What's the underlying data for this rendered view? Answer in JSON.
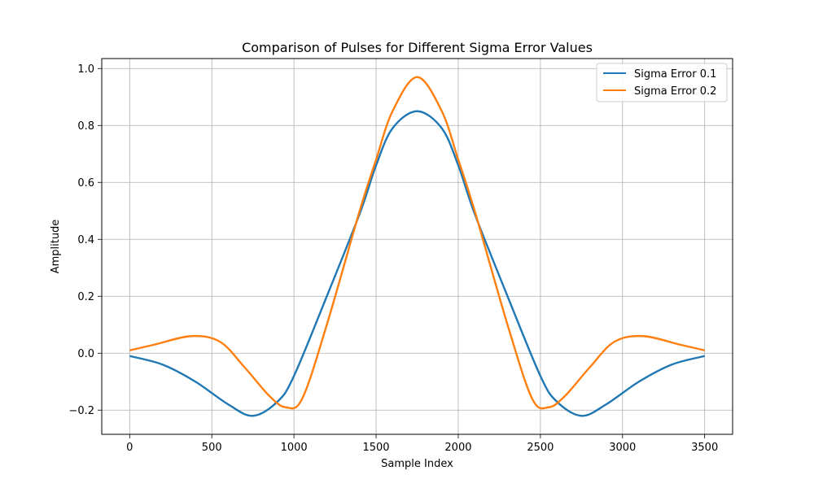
{
  "chart_data": {
    "type": "line",
    "title": "Comparison of Pulses for Different Sigma Error Values",
    "xlabel": "Sample Index",
    "ylabel": "Amplitude",
    "xlim": [
      -170,
      3670
    ],
    "ylim": [
      -0.285,
      1.035
    ],
    "xticks": [
      0,
      500,
      1000,
      1500,
      2000,
      2500,
      3000,
      3500
    ],
    "yticks": [
      -0.2,
      0.0,
      0.2,
      0.4,
      0.6,
      0.8,
      1.0
    ],
    "ytick_labels": [
      "−0.2",
      "0.0",
      "0.2",
      "0.4",
      "0.6",
      "0.8",
      "1.0"
    ],
    "grid": true,
    "legend": "top-right",
    "series": [
      {
        "name": "Sigma Error 0.1",
        "color": "#1f77b4",
        "x": [
          0,
          200,
          400,
          600,
          750,
          900,
          1000,
          1200,
          1400,
          1500,
          1600,
          1750,
          1900,
          2000,
          2100,
          2300,
          2500,
          2600,
          2750,
          2900,
          3100,
          3300,
          3500
        ],
        "y": [
          -0.01,
          -0.04,
          -0.1,
          -0.18,
          -0.22,
          -0.17,
          -0.08,
          0.2,
          0.49,
          0.66,
          0.79,
          0.85,
          0.79,
          0.66,
          0.49,
          0.2,
          -0.08,
          -0.17,
          -0.22,
          -0.18,
          -0.1,
          -0.04,
          -0.01
        ]
      },
      {
        "name": "Sigma Error 0.2",
        "color": "#ff7f0e",
        "x": [
          0,
          150,
          375,
          550,
          700,
          850,
          950,
          1050,
          1200,
          1400,
          1500,
          1600,
          1750,
          1900,
          2000,
          2100,
          2300,
          2450,
          2550,
          2650,
          2800,
          2950,
          3125,
          3350,
          3500
        ],
        "y": [
          0.01,
          0.03,
          0.06,
          0.04,
          -0.05,
          -0.15,
          -0.19,
          -0.16,
          0.1,
          0.5,
          0.68,
          0.85,
          0.97,
          0.85,
          0.68,
          0.5,
          0.1,
          -0.16,
          -0.19,
          -0.15,
          -0.05,
          0.04,
          0.06,
          0.03,
          0.01
        ]
      }
    ]
  }
}
